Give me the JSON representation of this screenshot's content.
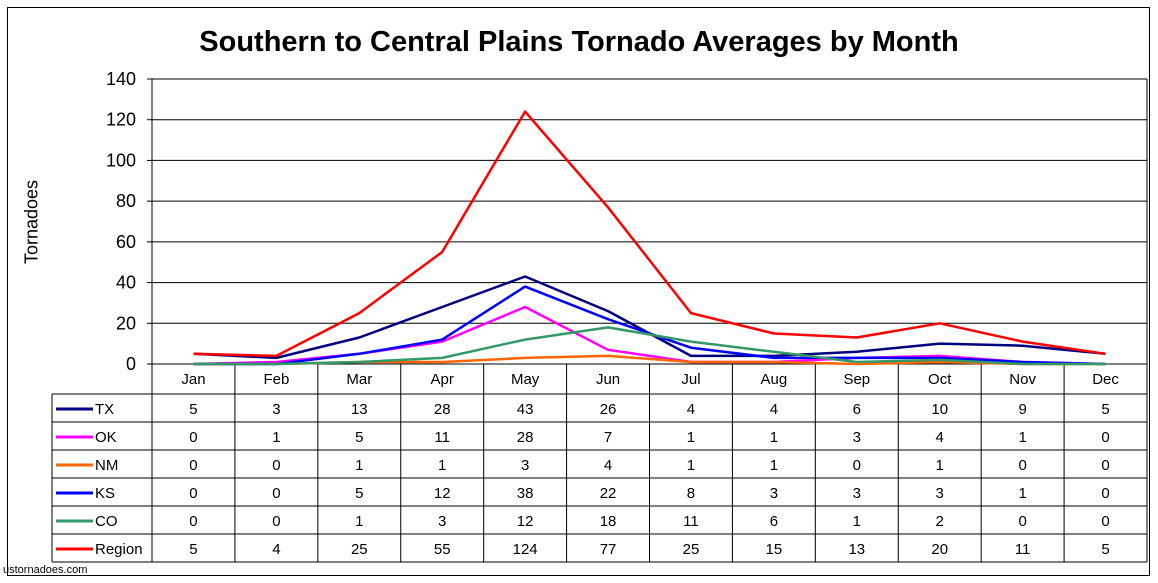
{
  "chart_data": {
    "type": "line",
    "title": "Southern to Central Plains Tornado Averages by Month",
    "ylabel": "Tornadoes",
    "xlabel": "",
    "ylim": [
      0,
      140
    ],
    "yticks": [
      0,
      20,
      40,
      60,
      80,
      100,
      120,
      140
    ],
    "grid": "horizontal",
    "legend": "data-table",
    "categories": [
      "Jan",
      "Feb",
      "Mar",
      "Apr",
      "May",
      "Jun",
      "Jul",
      "Aug",
      "Sep",
      "Oct",
      "Nov",
      "Dec"
    ],
    "series": [
      {
        "name": "TX",
        "color": "#000080",
        "values": [
          5,
          3,
          13,
          28,
          43,
          26,
          4,
          4,
          6,
          10,
          9,
          5
        ]
      },
      {
        "name": "OK",
        "color": "#ff00ff",
        "values": [
          0,
          1,
          5,
          11,
          28,
          7,
          1,
          1,
          3,
          4,
          1,
          0
        ]
      },
      {
        "name": "NM",
        "color": "#ff6600",
        "values": [
          0,
          0,
          1,
          1,
          3,
          4,
          1,
          1,
          0,
          1,
          0,
          0
        ]
      },
      {
        "name": "KS",
        "color": "#0000ff",
        "values": [
          0,
          0,
          5,
          12,
          38,
          22,
          8,
          3,
          3,
          3,
          1,
          0
        ]
      },
      {
        "name": "CO",
        "color": "#339966",
        "values": [
          0,
          0,
          1,
          3,
          12,
          18,
          11,
          6,
          1,
          2,
          0,
          0
        ]
      },
      {
        "name": "Region",
        "color": "#ff0000",
        "values": [
          5,
          4,
          25,
          55,
          124,
          77,
          25,
          15,
          13,
          20,
          11,
          5
        ]
      }
    ]
  },
  "source": "ustornadoes.com"
}
